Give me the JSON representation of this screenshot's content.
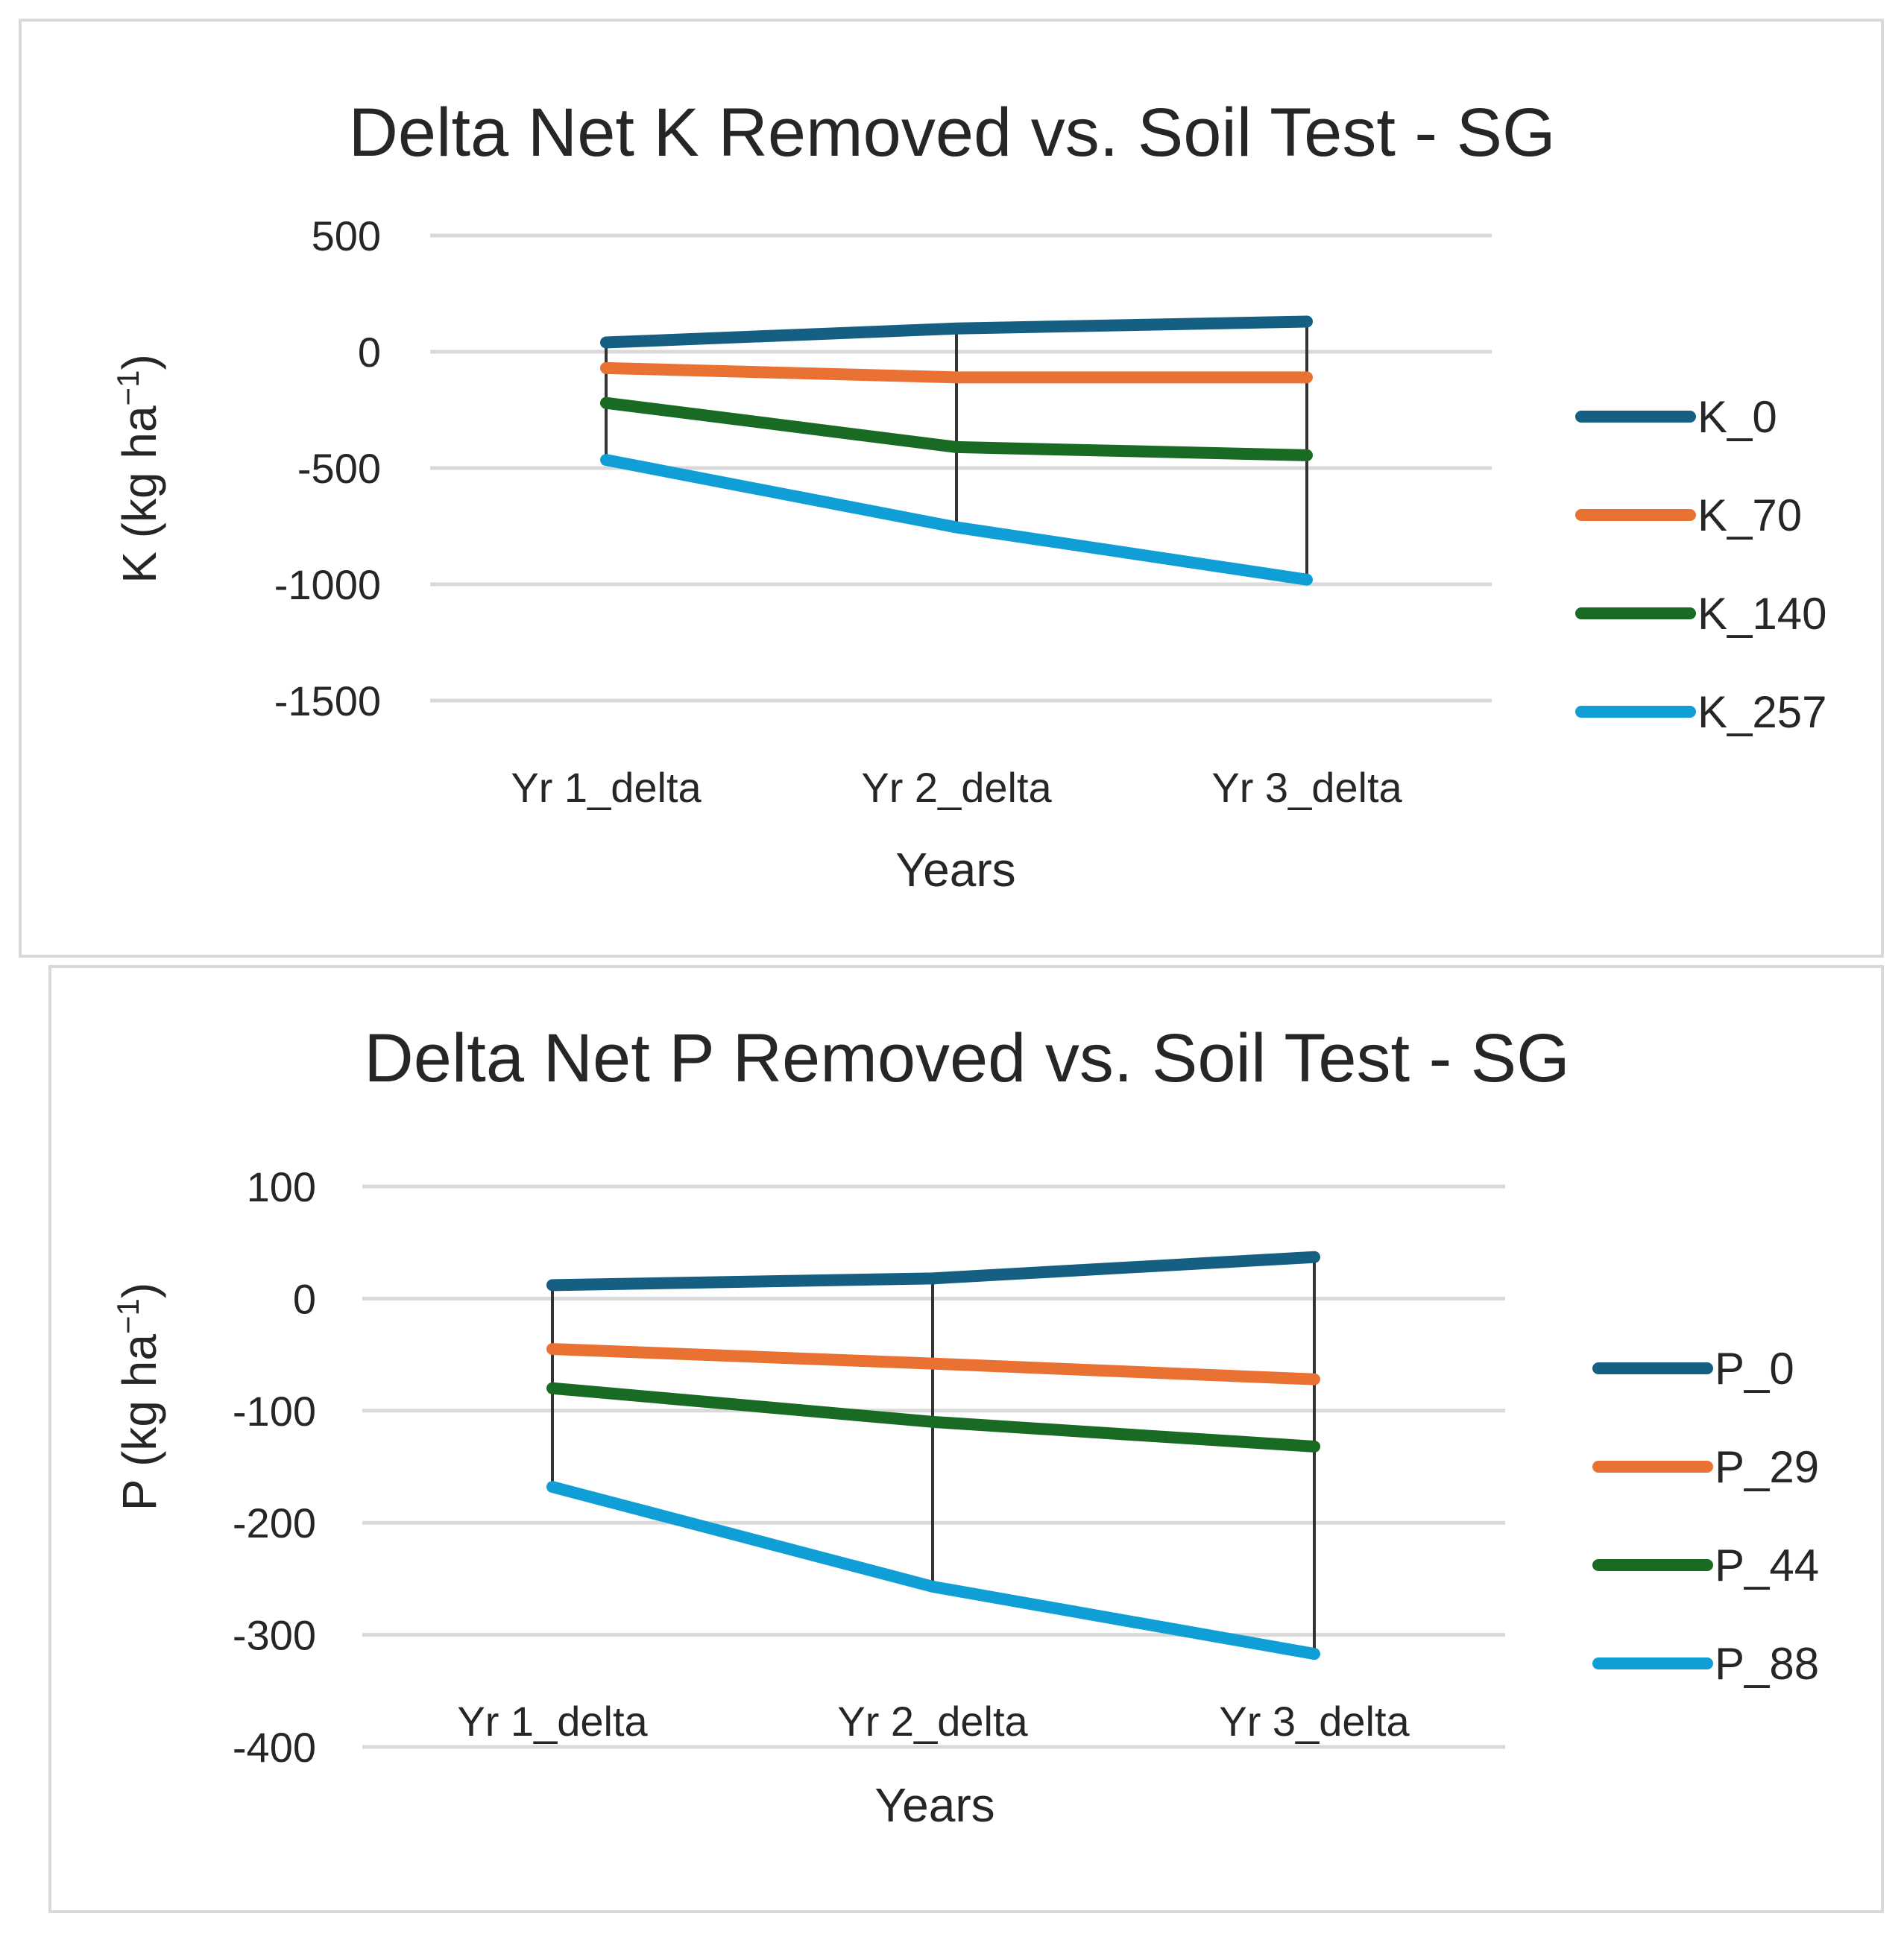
{
  "chart_data": [
    {
      "type": "line",
      "title": "Delta Net K Removed vs. Soil Test - SG",
      "xlabel": "Years",
      "ylabel": "K (kg ha",
      "ylabel_sup": "−1",
      "ylabel_end": ")",
      "categories": [
        "Yr 1_delta",
        "Yr 2_delta",
        "Yr 3_delta"
      ],
      "ylim": [
        -1500,
        500
      ],
      "yticks": [
        500,
        0,
        -500,
        -1000,
        -1500
      ],
      "legend_position": "right",
      "drop_lines": true,
      "series": [
        {
          "name": "K_0",
          "color": "#156082",
          "values": [
            40,
            100,
            130
          ]
        },
        {
          "name": "K_70",
          "color": "#e97132",
          "values": [
            -70,
            -110,
            -110
          ]
        },
        {
          "name": "K_140",
          "color": "#196b24",
          "values": [
            -220,
            -410,
            -445
          ]
        },
        {
          "name": "K_257",
          "color": "#0f9ed5",
          "values": [
            -465,
            -755,
            -980
          ]
        }
      ]
    },
    {
      "type": "line",
      "title": "Delta Net P Removed vs. Soil Test - SG",
      "xlabel": "Years",
      "ylabel": "P (kg ha",
      "ylabel_sup": "−1",
      "ylabel_end": ")",
      "categories": [
        "Yr 1_delta",
        "Yr 2_delta",
        "Yr 3_delta"
      ],
      "ylim": [
        -400,
        100
      ],
      "yticks": [
        100,
        0,
        -100,
        -200,
        -300,
        -400
      ],
      "legend_position": "right",
      "drop_lines": true,
      "series": [
        {
          "name": "P_0",
          "color": "#156082",
          "values": [
            12,
            18,
            37
          ]
        },
        {
          "name": "P_29",
          "color": "#e97132",
          "values": [
            -45,
            -58,
            -72
          ]
        },
        {
          "name": "P_44",
          "color": "#196b24",
          "values": [
            -80,
            -110,
            -132
          ]
        },
        {
          "name": "P_88",
          "color": "#0f9ed5",
          "values": [
            -168,
            -257,
            -317
          ]
        }
      ]
    }
  ]
}
